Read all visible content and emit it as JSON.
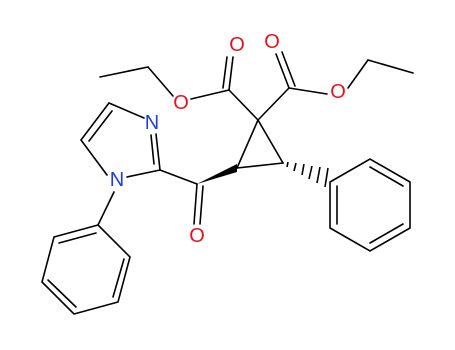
{
  "atoms": [
    {
      "label": "O"
    },
    {
      "label": "O"
    },
    {
      "label": "O"
    },
    {
      "label": "O"
    },
    {
      "label": "N"
    },
    {
      "label": "N"
    },
    {
      "label": "O"
    }
  ]
}
